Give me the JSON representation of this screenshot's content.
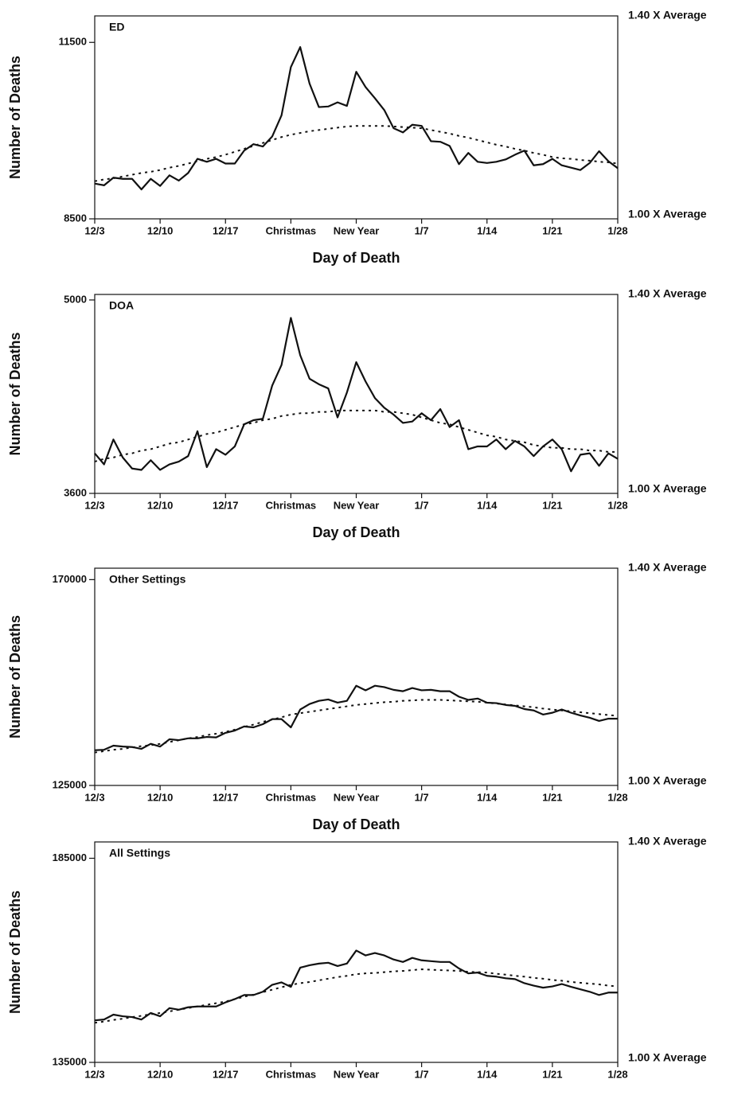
{
  "chart_data": [
    {
      "type": "line",
      "title": "ED",
      "x_label": "Day of Death",
      "y_label": "Number of Deaths",
      "categories": [
        "12/3",
        null,
        null,
        null,
        null,
        null,
        null,
        "12/10",
        null,
        null,
        null,
        null,
        null,
        null,
        "12/17",
        null,
        null,
        null,
        null,
        null,
        null,
        "Christmas",
        null,
        null,
        null,
        null,
        null,
        null,
        "New Year",
        null,
        null,
        null,
        null,
        null,
        null,
        "1/7",
        null,
        null,
        null,
        null,
        null,
        null,
        "1/14",
        null,
        null,
        null,
        null,
        null,
        null,
        "1/21",
        null,
        null,
        null,
        null,
        null,
        null,
        "1/28"
      ],
      "series": [
        {
          "color": "#111111",
          "style": "solid",
          "values": [
            9100,
            9070,
            9200,
            9180,
            9180,
            9000,
            9180,
            9060,
            9240,
            9150,
            9280,
            9520,
            9470,
            9520,
            9440,
            9440,
            9660,
            9770,
            9730,
            9900,
            10260,
            11080,
            11420,
            10800,
            10400,
            10410,
            10480,
            10420,
            11000,
            10740,
            10550,
            10350,
            10040,
            9970,
            10100,
            10080,
            9820,
            9810,
            9740,
            9430,
            9620,
            9470,
            9450,
            9470,
            9510,
            9590,
            9660,
            9410,
            9430,
            9520,
            9410,
            9370,
            9330,
            9450,
            9650,
            9480,
            9360
          ]
        },
        {
          "color": "#111111",
          "style": "dotted",
          "values": [
            9140,
            9170,
            9190,
            9220,
            9250,
            9280,
            9300,
            9330,
            9370,
            9400,
            9440,
            9480,
            9520,
            9550,
            9590,
            9640,
            9690,
            9740,
            9790,
            9840,
            9890,
            9930,
            9960,
            9990,
            10010,
            10030,
            10050,
            10070,
            10080,
            10080,
            10080,
            10080,
            10070,
            10060,
            10050,
            10040,
            10010,
            9980,
            9950,
            9910,
            9880,
            9840,
            9800,
            9760,
            9730,
            9690,
            9660,
            9620,
            9590,
            9550,
            9530,
            9520,
            9500,
            9490,
            9470,
            9460,
            9440
          ]
        }
      ],
      "ylim": [
        8500,
        11950
      ],
      "yticks": [
        8500,
        11500
      ],
      "y2lim": [
        1.0,
        1.4
      ],
      "y2ticks": [
        {
          "value": 1.4,
          "label": "1.40 X Average"
        },
        {
          "value": 1.0,
          "label": "1.00 X Average"
        }
      ]
    },
    {
      "type": "line",
      "title": "DOA",
      "x_label": "Day of Death",
      "y_label": "Number of Deaths",
      "categories": [
        "12/3",
        null,
        null,
        null,
        null,
        null,
        null,
        "12/10",
        null,
        null,
        null,
        null,
        null,
        null,
        "12/17",
        null,
        null,
        null,
        null,
        null,
        null,
        "Christmas",
        null,
        null,
        null,
        null,
        null,
        null,
        "New Year",
        null,
        null,
        null,
        null,
        null,
        null,
        "1/7",
        null,
        null,
        null,
        null,
        null,
        null,
        "1/14",
        null,
        null,
        null,
        null,
        null,
        null,
        "1/21",
        null,
        null,
        null,
        null,
        null,
        null,
        "1/28"
      ],
      "series": [
        {
          "color": "#111111",
          "style": "solid",
          "values": [
            3890,
            3810,
            3990,
            3860,
            3780,
            3770,
            3840,
            3770,
            3810,
            3830,
            3870,
            4050,
            3790,
            3920,
            3880,
            3940,
            4100,
            4130,
            4140,
            4380,
            4530,
            4870,
            4600,
            4430,
            4390,
            4360,
            4150,
            4330,
            4550,
            4410,
            4290,
            4220,
            4170,
            4110,
            4120,
            4180,
            4130,
            4210,
            4080,
            4130,
            3920,
            3940,
            3940,
            3990,
            3920,
            3980,
            3940,
            3870,
            3940,
            3990,
            3920,
            3760,
            3880,
            3890,
            3800,
            3890,
            3850
          ]
        },
        {
          "color": "#111111",
          "style": "dotted",
          "values": [
            3830,
            3850,
            3860,
            3880,
            3890,
            3910,
            3920,
            3940,
            3960,
            3970,
            3990,
            4010,
            4030,
            4040,
            4060,
            4080,
            4100,
            4110,
            4130,
            4140,
            4160,
            4170,
            4180,
            4180,
            4190,
            4190,
            4200,
            4200,
            4200,
            4200,
            4200,
            4190,
            4190,
            4180,
            4170,
            4150,
            4130,
            4110,
            4100,
            4080,
            4060,
            4040,
            4020,
            4010,
            3990,
            3980,
            3970,
            3950,
            3940,
            3930,
            3930,
            3920,
            3920,
            3910,
            3910,
            3900,
            3900
          ]
        }
      ],
      "ylim": [
        3600,
        5040
      ],
      "yticks": [
        3600,
        5000
      ],
      "y2lim": [
        1.0,
        1.4
      ],
      "y2ticks": [
        {
          "value": 1.4,
          "label": "1.40 X Average"
        },
        {
          "value": 1.0,
          "label": "1.00 X Average"
        }
      ]
    },
    {
      "type": "line",
      "title": "Other Settings",
      "x_label": "Day of Death",
      "y_label": "Number of Deaths",
      "categories": [
        "12/3",
        null,
        null,
        null,
        null,
        null,
        null,
        "12/10",
        null,
        null,
        null,
        null,
        null,
        null,
        "12/17",
        null,
        null,
        null,
        null,
        null,
        null,
        "Christmas",
        null,
        null,
        null,
        null,
        null,
        null,
        "New Year",
        null,
        null,
        null,
        null,
        null,
        null,
        "1/7",
        null,
        null,
        null,
        null,
        null,
        null,
        "1/14",
        null,
        null,
        null,
        null,
        null,
        null,
        "1/21",
        null,
        null,
        null,
        null,
        null,
        null,
        "1/28"
      ],
      "series": [
        {
          "color": "#111111",
          "style": "solid",
          "values": [
            132700,
            132800,
            133700,
            133500,
            133400,
            133000,
            134100,
            133500,
            135100,
            134900,
            135300,
            135300,
            135600,
            135500,
            136500,
            137000,
            137900,
            137700,
            138400,
            139500,
            139500,
            137700,
            141600,
            142800,
            143500,
            143800,
            143100,
            143500,
            146800,
            145800,
            146800,
            146500,
            145900,
            145600,
            146300,
            145800,
            145900,
            145600,
            145600,
            144400,
            143700,
            144000,
            143100,
            143000,
            142600,
            142400,
            141700,
            141400,
            140500,
            140900,
            141600,
            140900,
            140300,
            139800,
            139100,
            139600,
            139600
          ]
        },
        {
          "color": "#111111",
          "style": "dotted",
          "values": [
            132200,
            132500,
            132800,
            133000,
            133300,
            133600,
            133800,
            134100,
            134500,
            134900,
            135300,
            135600,
            136000,
            136300,
            136700,
            137200,
            137800,
            138300,
            138900,
            139400,
            139900,
            140500,
            140800,
            141100,
            141400,
            141700,
            142000,
            142300,
            142600,
            142800,
            143000,
            143200,
            143300,
            143500,
            143600,
            143700,
            143700,
            143700,
            143600,
            143500,
            143400,
            143300,
            143100,
            142900,
            142700,
            142500,
            142300,
            142100,
            141800,
            141600,
            141400,
            141200,
            141000,
            140800,
            140600,
            140400,
            140200
          ]
        }
      ],
      "ylim": [
        125000,
        172500
      ],
      "yticks": [
        125000,
        170000
      ],
      "y2lim": [
        1.0,
        1.4
      ],
      "y2ticks": [
        {
          "value": 1.4,
          "label": "1.40 X Average"
        },
        {
          "value": 1.0,
          "label": "1.00 X Average"
        }
      ]
    },
    {
      "type": "line",
      "title": "All Settings",
      "x_label": "Day of Death",
      "y_label": "Number of Deaths",
      "categories": [
        "12/3",
        null,
        null,
        null,
        null,
        null,
        null,
        "12/10",
        null,
        null,
        null,
        null,
        null,
        null,
        "12/17",
        null,
        null,
        null,
        null,
        null,
        null,
        "Christmas",
        null,
        null,
        null,
        null,
        null,
        null,
        "New Year",
        null,
        null,
        null,
        null,
        null,
        null,
        "1/7",
        null,
        null,
        null,
        null,
        null,
        null,
        "1/14",
        null,
        null,
        null,
        null,
        null,
        null,
        "1/21",
        null,
        null,
        null,
        null,
        null,
        null,
        "1/28"
      ],
      "series": [
        {
          "color": "#111111",
          "style": "solid",
          "values": [
            145300,
            145500,
            146700,
            146300,
            146100,
            145500,
            147100,
            146300,
            148300,
            147900,
            148500,
            148700,
            148700,
            148700,
            149700,
            150500,
            151500,
            151500,
            152300,
            154000,
            154600,
            153500,
            158200,
            158800,
            159200,
            159400,
            158600,
            159200,
            162400,
            161200,
            161800,
            161200,
            160200,
            159600,
            160600,
            160000,
            159800,
            159600,
            159600,
            158000,
            156800,
            157000,
            156200,
            156000,
            155600,
            155400,
            154400,
            153800,
            153300,
            153600,
            154200,
            153500,
            152900,
            152300,
            151500,
            152100,
            152100
          ]
        },
        {
          "color": "#111111",
          "style": "dotted",
          "values": [
            144700,
            145000,
            145400,
            145700,
            146100,
            146400,
            146800,
            147100,
            147500,
            147900,
            148300,
            148700,
            149100,
            149500,
            149900,
            150500,
            151100,
            151600,
            152200,
            152800,
            153400,
            154000,
            154400,
            154700,
            155100,
            155500,
            155900,
            156200,
            156600,
            156800,
            156900,
            157100,
            157300,
            157400,
            157600,
            157800,
            157700,
            157600,
            157500,
            157400,
            157200,
            157100,
            157000,
            156700,
            156500,
            156200,
            156000,
            155700,
            155500,
            155200,
            155000,
            154700,
            154500,
            154300,
            154100,
            153800,
            153600
          ]
        }
      ],
      "ylim": [
        135000,
        189000
      ],
      "yticks": [
        135000,
        185000
      ],
      "y2lim": [
        1.0,
        1.4
      ],
      "y2ticks": [
        {
          "value": 1.4,
          "label": "1.40 X Average"
        },
        {
          "value": 1.0,
          "label": "1.00 X Average"
        }
      ]
    }
  ]
}
